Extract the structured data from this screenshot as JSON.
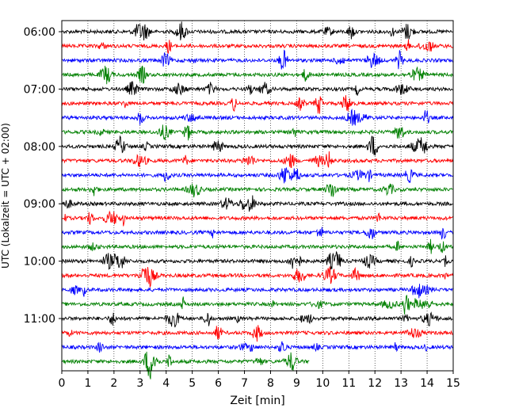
{
  "chart_data": {
    "type": "line",
    "title": "",
    "xlabel": "Zeit  [min]",
    "ylabel": "UTC (Lokalzeit = UTC + 02:00)",
    "xlim": [
      0,
      15
    ],
    "x_ticks": [
      "0",
      "1",
      "2",
      "3",
      "4",
      "5",
      "6",
      "7",
      "8",
      "9",
      "10",
      "11",
      "12",
      "13",
      "14",
      "15"
    ],
    "y_tick_labels": [
      "06:00",
      "07:00",
      "08:00",
      "09:00",
      "10:00",
      "11:00"
    ],
    "grid": "vertical dotted",
    "trace_interval_minutes": 15,
    "color_cycle": [
      "#000000",
      "#ff0000",
      "#0000ff",
      "#008000"
    ],
    "rows": [
      {
        "start": "06:00",
        "end_minute": 15
      },
      {
        "start": "06:15",
        "end_minute": 15
      },
      {
        "start": "06:30",
        "end_minute": 15
      },
      {
        "start": "06:45",
        "end_minute": 15
      },
      {
        "start": "07:00",
        "end_minute": 15
      },
      {
        "start": "07:15",
        "end_minute": 15
      },
      {
        "start": "07:30",
        "end_minute": 15
      },
      {
        "start": "07:45",
        "end_minute": 15
      },
      {
        "start": "08:00",
        "end_minute": 15
      },
      {
        "start": "08:15",
        "end_minute": 15
      },
      {
        "start": "08:30",
        "end_minute": 15
      },
      {
        "start": "08:45",
        "end_minute": 15
      },
      {
        "start": "09:00",
        "end_minute": 15
      },
      {
        "start": "09:15",
        "end_minute": 15
      },
      {
        "start": "09:30",
        "end_minute": 15
      },
      {
        "start": "09:45",
        "end_minute": 15
      },
      {
        "start": "10:00",
        "end_minute": 15
      },
      {
        "start": "10:15",
        "end_minute": 15
      },
      {
        "start": "10:30",
        "end_minute": 15
      },
      {
        "start": "10:45",
        "end_minute": 15
      },
      {
        "start": "11:00",
        "end_minute": 15
      },
      {
        "start": "11:15",
        "end_minute": 15
      },
      {
        "start": "11:30",
        "end_minute": 15
      },
      {
        "start": "11:45",
        "end_minute": 9.5
      }
    ]
  }
}
